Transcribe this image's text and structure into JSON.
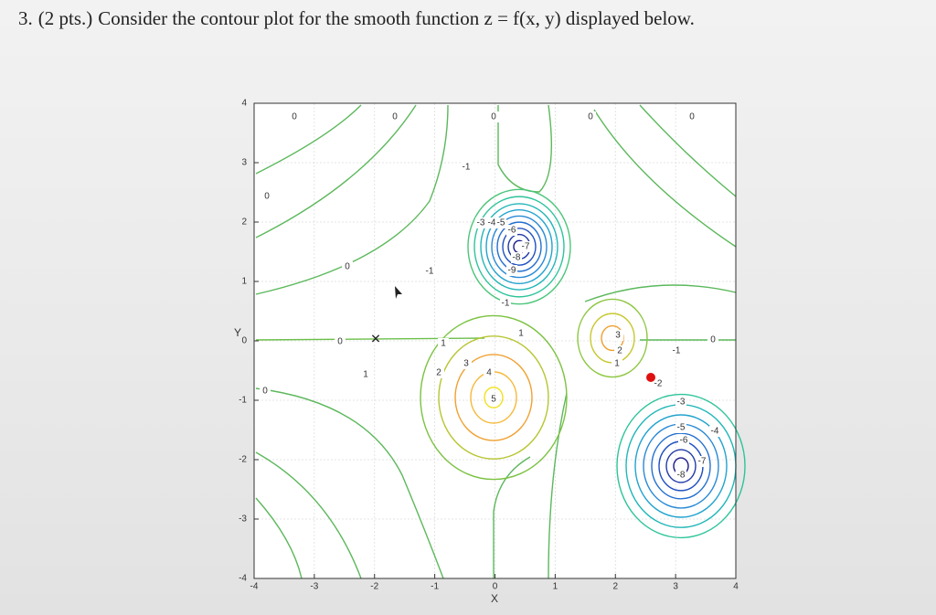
{
  "question": {
    "number": "3.",
    "points": "(2 pts.)",
    "text": "Consider the contour plot for the smooth function z = f(x, y) displayed below."
  },
  "chart_data": {
    "type": "contour",
    "xlabel": "X",
    "ylabel": "Y",
    "xlim": [
      -4,
      4
    ],
    "ylim": [
      -4,
      4
    ],
    "xticks": [
      -4,
      -3,
      -2,
      -1,
      0,
      1,
      2,
      3,
      4
    ],
    "yticks": [
      -4,
      -3,
      -2,
      -1,
      0,
      1,
      2,
      3,
      4
    ],
    "grid": true,
    "contour_labels": [
      5,
      4,
      3,
      2,
      1,
      3,
      2,
      1,
      -1,
      -3,
      -4,
      -5,
      -6,
      -7,
      -8,
      -9,
      -1,
      -2,
      -3,
      -4,
      -5,
      -6,
      -7,
      -8,
      0,
      0,
      0,
      0,
      0,
      0,
      0,
      0,
      0,
      0,
      -1,
      -1,
      1,
      1
    ]
  }
}
